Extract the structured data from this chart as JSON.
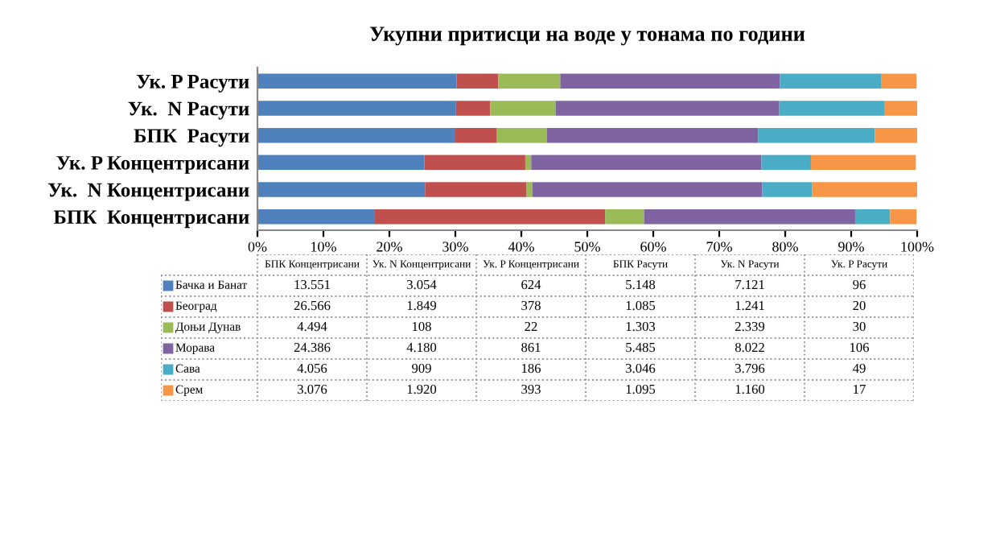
{
  "chart_data": [
    {
      "type": "bar",
      "orientation": "horizontal",
      "stacked": true,
      "title": "Укупни притисци на воде у тонама по години",
      "categories": [
        "Ук. P Расути",
        "Ук.  N Расути",
        "БПК  Расути",
        "Ук. P Концентрисани",
        "Ук.  N Концентрисани",
        "БПК  Концентрисани"
      ],
      "series": [
        {
          "color": "#4f81bd",
          "values": [
            30.2,
            30.1,
            30.0,
            25.3,
            25.4,
            17.8
          ]
        },
        {
          "color": "#c0504d",
          "values": [
            6.3,
            5.2,
            6.3,
            15.3,
            15.4,
            34.9
          ]
        },
        {
          "color": "#9bbb59",
          "values": [
            9.4,
            9.9,
            7.6,
            0.9,
            0.9,
            5.9
          ]
        },
        {
          "color": "#8064a2",
          "values": [
            33.3,
            33.9,
            32.0,
            34.9,
            34.8,
            32.0
          ]
        },
        {
          "color": "#4bacc6",
          "values": [
            15.4,
            16.0,
            17.7,
            7.5,
            7.6,
            5.3
          ]
        },
        {
          "color": "#f79646",
          "values": [
            5.3,
            4.9,
            6.4,
            15.9,
            16.0,
            4.0
          ]
        }
      ],
      "xlim": [
        0,
        100
      ],
      "xticks": [
        {
          "value": 0,
          "label": "0%"
        },
        {
          "value": 10,
          "label": "10%"
        },
        {
          "value": 20,
          "label": "20%"
        },
        {
          "value": 30,
          "label": "30%"
        },
        {
          "value": 40,
          "label": "40%"
        },
        {
          "value": 50,
          "label": "50%"
        },
        {
          "value": 60,
          "label": "60%"
        },
        {
          "value": 70,
          "label": "70%"
        },
        {
          "value": 80,
          "label": "80%"
        },
        {
          "value": 90,
          "label": "90%"
        },
        {
          "value": 100,
          "label": "100%"
        }
      ]
    },
    {
      "type": "other",
      "categories": [
        "БПК Концентрисани",
        "Ук. N Концентрисани",
        "Ук. P Концентрисани",
        "БПК Расути",
        "Ук. N Расути",
        "Ук. P Расути"
      ],
      "series": [
        {
          "name": "Бачка и Банат",
          "color": "#4f81bd",
          "values": [
            13551,
            3054,
            624,
            5148,
            7121,
            96
          ],
          "value_labels": [
            "13.551",
            "3.054",
            "624",
            "5.148",
            "7.121",
            "96"
          ]
        },
        {
          "name": "Београд",
          "color": "#c0504d",
          "values": [
            26566,
            1849,
            378,
            1085,
            1241,
            20
          ],
          "value_labels": [
            "26.566",
            "1.849",
            "378",
            "1.085",
            "1.241",
            "20"
          ]
        },
        {
          "name": "Доњи Дунав",
          "color": "#9bbb59",
          "values": [
            4494,
            108,
            22,
            1303,
            2339,
            30
          ],
          "value_labels": [
            "4.494",
            "108",
            "22",
            "1.303",
            "2.339",
            "30"
          ]
        },
        {
          "name": "Морава",
          "color": "#8064a2",
          "values": [
            24386,
            4180,
            861,
            5485,
            8022,
            106
          ],
          "value_labels": [
            "24.386",
            "4.180",
            "861",
            "5.485",
            "8.022",
            "106"
          ]
        },
        {
          "name": "Сава",
          "color": "#4bacc6",
          "values": [
            4056,
            909,
            186,
            3046,
            3796,
            49
          ],
          "value_labels": [
            "4.056",
            "909",
            "186",
            "3.046",
            "3.796",
            "49"
          ]
        },
        {
          "name": "Срем",
          "color": "#f79646",
          "values": [
            3076,
            1920,
            393,
            1095,
            1160,
            17
          ],
          "value_labels": [
            "3.076",
            "1.920",
            "393",
            "1.095",
            "1.160",
            "17"
          ]
        }
      ],
      "legend": "left"
    }
  ]
}
